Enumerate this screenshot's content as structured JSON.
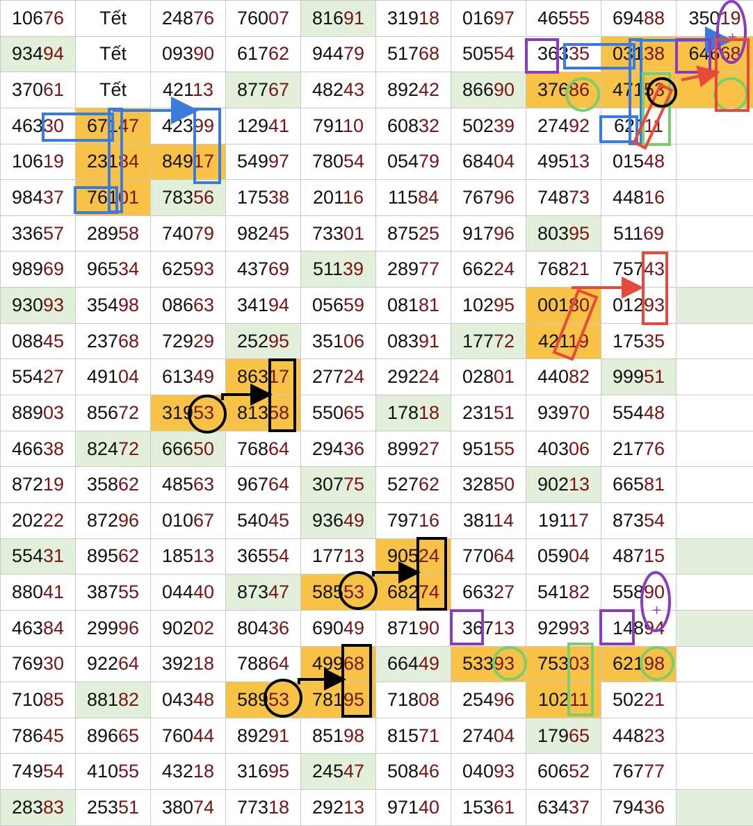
{
  "colors": {
    "green_cell": "#e2efda",
    "orange_cell": "#f7c245",
    "tail_digits": "#7a1414",
    "grid_line": "#c9c9c9",
    "mark_blue": "#3a7bdc",
    "mark_purple": "#8a3bbf",
    "mark_green": "#7ccd6c",
    "mark_red": "#e64a3b",
    "mark_black": "#000000"
  },
  "rows": [
    [
      "10676",
      "Tết",
      "24876",
      "76007",
      "81691",
      "31918",
      "01697",
      "46555",
      "69488",
      "35019"
    ],
    [
      "93494",
      "Tết",
      "09390",
      "61762",
      "94479",
      "51768",
      "50554",
      "36335",
      "03138",
      "64668"
    ],
    [
      "37061",
      "Tết",
      "42113",
      "87767",
      "48243",
      "89242",
      "86690",
      "37686",
      "47153",
      ""
    ],
    [
      "46330",
      "67147",
      "42399",
      "12941",
      "79110",
      "60832",
      "50239",
      "27492",
      "62111",
      ""
    ],
    [
      "10619",
      "23184",
      "84917",
      "54997",
      "78054",
      "05479",
      "68404",
      "49513",
      "01548",
      ""
    ],
    [
      "98437",
      "76101",
      "78356",
      "17538",
      "20116",
      "11584",
      "76796",
      "74873",
      "44816",
      ""
    ],
    [
      "33657",
      "28958",
      "74079",
      "98245",
      "73301",
      "87525",
      "91796",
      "80395",
      "51169",
      ""
    ],
    [
      "98969",
      "96534",
      "62593",
      "43769",
      "51139",
      "28977",
      "66224",
      "76821",
      "75743",
      ""
    ],
    [
      "93093",
      "35498",
      "08663",
      "34194",
      "05659",
      "08181",
      "10295",
      "00180",
      "01293",
      ""
    ],
    [
      "08845",
      "23768",
      "72929",
      "25295",
      "35106",
      "08391",
      "17772",
      "42119",
      "17535",
      ""
    ],
    [
      "55427",
      "49104",
      "61349",
      "86317",
      "27724",
      "29224",
      "02801",
      "44082",
      "99951",
      ""
    ],
    [
      "88903",
      "85672",
      "31953",
      "81358",
      "55065",
      "17818",
      "23151",
      "93970",
      "55448",
      ""
    ],
    [
      "46638",
      "82472",
      "66650",
      "76864",
      "29436",
      "89927",
      "95155",
      "40306",
      "21776",
      ""
    ],
    [
      "87219",
      "35862",
      "48563",
      "96764",
      "30775",
      "52762",
      "32850",
      "90213",
      "66581",
      ""
    ],
    [
      "20222",
      "87296",
      "01067",
      "54045",
      "93649",
      "79716",
      "38114",
      "19117",
      "87354",
      ""
    ],
    [
      "55431",
      "89562",
      "18513",
      "36554",
      "17713",
      "90524",
      "77064",
      "05904",
      "48715",
      ""
    ],
    [
      "88041",
      "38755",
      "04440",
      "87347",
      "58553",
      "68274",
      "66327",
      "54182",
      "55890",
      ""
    ],
    [
      "46384",
      "29996",
      "90202",
      "80436",
      "69049",
      "87190",
      "36713",
      "92993",
      "14894",
      ""
    ],
    [
      "76930",
      "92264",
      "39218",
      "78864",
      "49968",
      "66449",
      "53393",
      "75303",
      "62198",
      ""
    ],
    [
      "71085",
      "88182",
      "04348",
      "58953",
      "78195",
      "71808",
      "25496",
      "10211",
      "50221",
      ""
    ],
    [
      "78645",
      "89665",
      "76044",
      "89291",
      "85198",
      "81571",
      "27404",
      "17965",
      "44823",
      ""
    ],
    [
      "74954",
      "41055",
      "43218",
      "31695",
      "24547",
      "50846",
      "04093",
      "60652",
      "76777",
      ""
    ],
    [
      "28383",
      "25351",
      "38074",
      "77318",
      "29213",
      "97140",
      "15361",
      "63437",
      "79436",
      ""
    ]
  ],
  "green_cells": [
    [
      0,
      4
    ],
    [
      1,
      0
    ],
    [
      2,
      3
    ],
    [
      2,
      6
    ],
    [
      5,
      2
    ],
    [
      6,
      7
    ],
    [
      7,
      4
    ],
    [
      8,
      0
    ],
    [
      8,
      9
    ],
    [
      9,
      3
    ],
    [
      9,
      6
    ],
    [
      10,
      8
    ],
    [
      11,
      5
    ],
    [
      12,
      1
    ],
    [
      12,
      2
    ],
    [
      13,
      4
    ],
    [
      13,
      7
    ],
    [
      14,
      4
    ],
    [
      15,
      0
    ],
    [
      15,
      9
    ],
    [
      16,
      3
    ],
    [
      17,
      9
    ],
    [
      18,
      5
    ],
    [
      19,
      1
    ],
    [
      20,
      7
    ],
    [
      21,
      4
    ],
    [
      22,
      0
    ],
    [
      22,
      9
    ]
  ],
  "orange_cells": [
    [
      1,
      8
    ],
    [
      1,
      9
    ],
    [
      2,
      7
    ],
    [
      2,
      8
    ],
    [
      2,
      9
    ],
    [
      3,
      1
    ],
    [
      4,
      1
    ],
    [
      4,
      2
    ],
    [
      5,
      1
    ],
    [
      8,
      7
    ],
    [
      9,
      7
    ],
    [
      10,
      3
    ],
    [
      11,
      2
    ],
    [
      11,
      3
    ],
    [
      15,
      5
    ],
    [
      16,
      4
    ],
    [
      16,
      5
    ],
    [
      18,
      4
    ],
    [
      18,
      6
    ],
    [
      18,
      7
    ],
    [
      18,
      8
    ],
    [
      19,
      3
    ],
    [
      19,
      4
    ],
    [
      19,
      7
    ]
  ]
}
